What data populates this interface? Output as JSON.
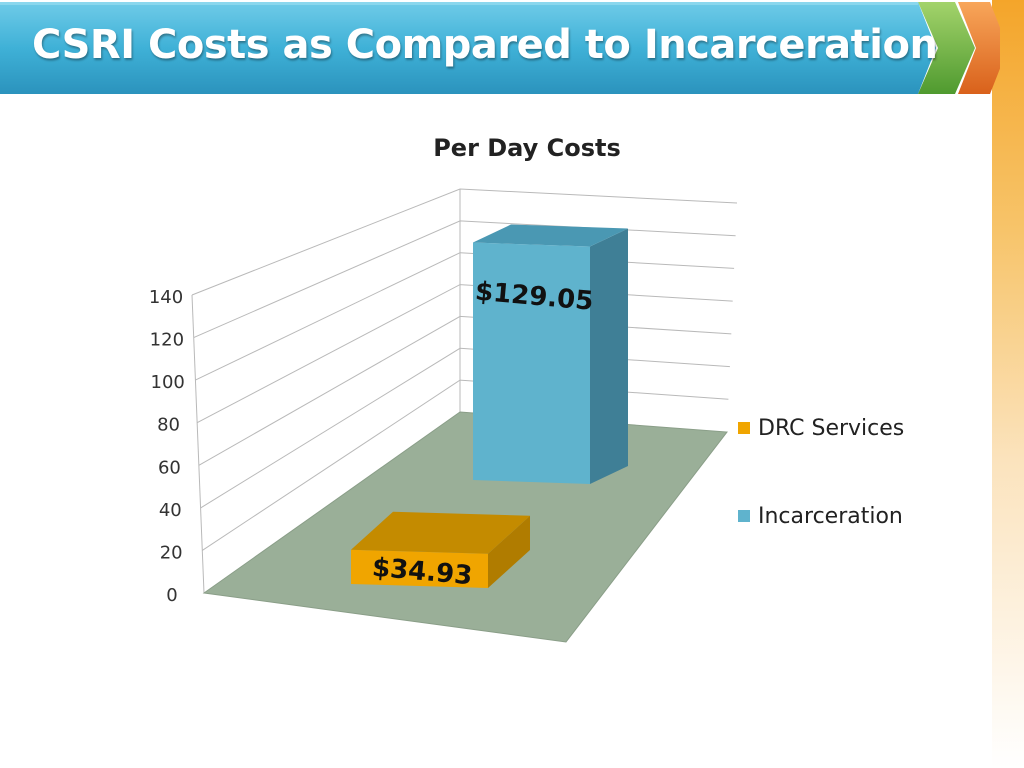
{
  "slide": {
    "title": "CSRI Costs as Compared to Incarceration"
  },
  "colors": {
    "banner_blue": "#3fb1d7",
    "arrow_green": "#74b544",
    "arrow_orange": "#ee7b2c",
    "floor": "#9aaf98",
    "drc": "#f0a500",
    "incarceration": "#5fb3cd"
  },
  "chart_data": {
    "type": "bar",
    "title": "Per Day Costs",
    "categories": [
      ""
    ],
    "series": [
      {
        "name": "DRC Services",
        "values": [
          34.93
        ],
        "label": "$34.93",
        "color": "#f0a500"
      },
      {
        "name": "Incarceration",
        "values": [
          129.05
        ],
        "label": "$129.05",
        "color": "#5fb3cd"
      }
    ],
    "ylim": [
      0,
      140
    ],
    "yticks": [
      0,
      20,
      40,
      60,
      80,
      100,
      120,
      140
    ],
    "grid": true,
    "three_d": true,
    "legend": "right"
  }
}
